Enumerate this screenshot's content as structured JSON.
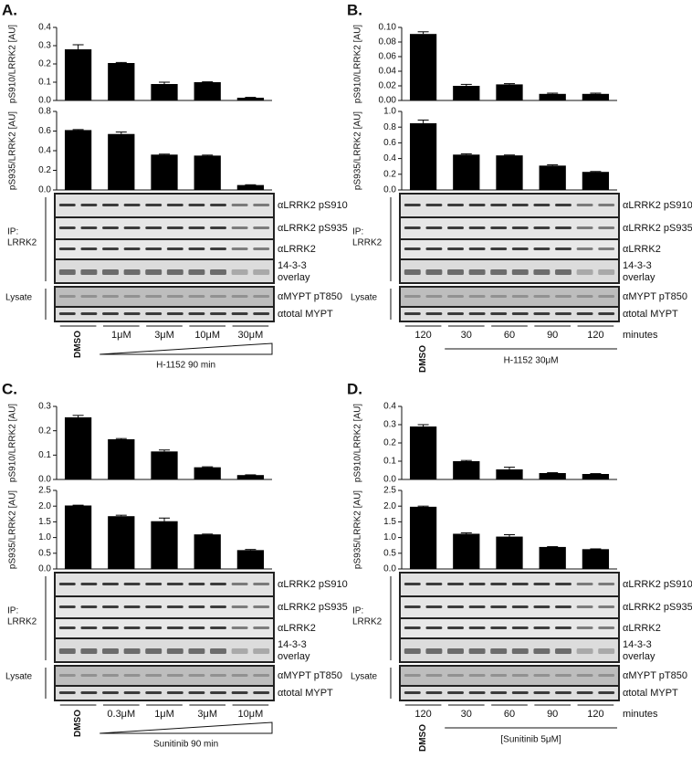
{
  "chart_data": [
    {
      "type": "bar",
      "ylabel": "pS910/LRRK2 [AU]",
      "values": [
        0.28,
        0.205,
        0.09,
        0.1,
        0.015
      ],
      "errors": [
        0.025,
        0.003,
        0.01,
        0.002,
        0.002
      ],
      "color": "#000000",
      "ylim": [
        0,
        0.4
      ],
      "yticks": [
        {
          "value": 0,
          "label": "0.0"
        },
        0.1,
        0.2,
        0.3,
        0.4
      ]
    },
    {
      "type": "bar",
      "ylabel": "pS935/LRRK2 [AU]",
      "values": [
        0.61,
        0.57,
        0.36,
        0.35,
        0.05
      ],
      "errors": [
        0.005,
        0.02,
        0.005,
        0.005,
        0.003
      ],
      "color": "#000000",
      "ylim": [
        0,
        0.8
      ],
      "yticks": [
        {
          "value": 0,
          "label": "0.0"
        },
        0.2,
        0.4,
        0.6,
        0.8
      ]
    },
    {
      "type": "bar",
      "ylabel": "pS910/LRRK2 [AU]",
      "values": [
        0.091,
        0.02,
        0.022,
        0.009,
        0.009
      ],
      "errors": [
        0.003,
        0.002,
        0.001,
        0.001,
        0.001
      ],
      "color": "#000000",
      "ylim": [
        0,
        0.1
      ],
      "yticks": [
        {
          "value": 0,
          "label": "0.00"
        },
        0.02,
        0.04,
        0.06,
        0.08,
        {
          "value": 0.1,
          "label": "0.10"
        }
      ]
    },
    {
      "type": "bar",
      "ylabel": "pS935/LRRK2 [AU]",
      "values": [
        0.85,
        0.45,
        0.44,
        0.31,
        0.23
      ],
      "errors": [
        0.04,
        0.01,
        0.005,
        0.01,
        0.005
      ],
      "color": "#000000",
      "ylim": [
        0,
        1
      ],
      "yticks": [
        {
          "value": 0,
          "label": "0.0"
        },
        0.2,
        0.4,
        0.6,
        0.8,
        {
          "value": 1,
          "label": "1.0"
        }
      ]
    },
    {
      "type": "bar",
      "ylabel": "pS910/LRRK2 [AU]",
      "values": [
        0.255,
        0.165,
        0.115,
        0.05,
        0.018
      ],
      "errors": [
        0.008,
        0.003,
        0.006,
        0.002,
        0.001
      ],
      "color": "#000000",
      "ylim": [
        0,
        0.3
      ],
      "yticks": [
        {
          "value": 0,
          "label": "0.0"
        },
        0.1,
        0.2,
        0.3
      ]
    },
    {
      "type": "bar",
      "ylabel": "pS935/LRRK2 [AU]",
      "values": [
        2.02,
        1.68,
        1.52,
        1.1,
        0.6
      ],
      "errors": [
        0.01,
        0.03,
        0.1,
        0.01,
        0.02
      ],
      "color": "#000000",
      "ylim": [
        0,
        2.5
      ],
      "yticks": [
        {
          "value": 0,
          "label": "0.0"
        },
        0.5,
        {
          "value": 1,
          "label": "1.0"
        },
        1.5,
        {
          "value": 2,
          "label": "2.0"
        },
        2.5
      ]
    },
    {
      "type": "bar",
      "ylabel": "pS910/LRRK2 [AU]",
      "values": [
        0.29,
        0.1,
        0.055,
        0.035,
        0.03
      ],
      "errors": [
        0.01,
        0.004,
        0.012,
        0.002,
        0.002
      ],
      "color": "#000000",
      "ylim": [
        0,
        0.4
      ],
      "yticks": [
        {
          "value": 0,
          "label": "0.0"
        },
        0.1,
        0.2,
        0.3,
        0.4
      ]
    },
    {
      "type": "bar",
      "ylabel": "pS935/LRRK2 [AU]",
      "values": [
        1.98,
        1.12,
        1.03,
        0.7,
        0.63
      ],
      "errors": [
        0.02,
        0.03,
        0.06,
        0.01,
        0.01
      ],
      "color": "#000000",
      "ylim": [
        0,
        2.5
      ],
      "yticks": [
        {
          "value": 0,
          "label": "0.0"
        },
        0.5,
        {
          "value": 1,
          "label": "1.0"
        },
        1.5,
        {
          "value": 2,
          "label": "2.0"
        },
        2.5
      ]
    }
  ],
  "panels": [
    {
      "letter": "A.",
      "ip_rows": [
        "αLRRK2 pS910",
        "αLRRK2 pS935",
        "αLRRK2"
      ],
      "overlay": [
        "14-3-3",
        "overlay"
      ],
      "lysate_rows": [
        "αMYPT pT850",
        "αtotal MYPT"
      ],
      "ip_label": [
        "IP:",
        "LRRK2"
      ],
      "lysate_label": "Lysate",
      "lanes": [
        "DMSO",
        "1μM",
        "3μM",
        "10μM",
        "30μM"
      ],
      "treatment": "H-1152 90 min"
    },
    {
      "letter": "B.",
      "ip_rows": [
        "αLRRK2 pS910",
        "αLRRK2 pS935",
        "αLRRK2"
      ],
      "overlay": [
        "14-3-3",
        "overlay"
      ],
      "lysate_rows": [
        "αMYPT pT850",
        "αtotal MYPT"
      ],
      "ip_label": [
        "IP:",
        "LRRK2"
      ],
      "lysate_label": "Lysate",
      "lanes": [
        "120",
        "30",
        "60",
        "90",
        "120"
      ],
      "lane_unit": "minutes",
      "control": "DMSO",
      "treatment": "H-1152 30μM"
    },
    {
      "letter": "C.",
      "ip_rows": [
        "αLRRK2 pS910",
        "αLRRK2 pS935",
        "αLRRK2"
      ],
      "overlay": [
        "14-3-3",
        "overlay"
      ],
      "lysate_rows": [
        "αMYPT pT850",
        "αtotal MYPT"
      ],
      "ip_label": [
        "IP:",
        "LRRK2"
      ],
      "lysate_label": "Lysate",
      "lanes": [
        "DMSO",
        "0.3μM",
        "1μM",
        "3μM",
        "10μM"
      ],
      "treatment": "Sunitinib 90 min"
    },
    {
      "letter": "D.",
      "ip_rows": [
        "αLRRK2 pS910",
        "αLRRK2 pS935",
        "αLRRK2"
      ],
      "overlay": [
        "14-3-3",
        "overlay"
      ],
      "lysate_rows": [
        "αMYPT pT850",
        "αtotal MYPT"
      ],
      "ip_label": [
        "IP:",
        "LRRK2"
      ],
      "lysate_label": "Lysate",
      "lanes": [
        "120",
        "30",
        "60",
        "90",
        "120"
      ],
      "lane_unit": "minutes",
      "control": "DMSO",
      "treatment": "[Sunitinib 5μM]"
    }
  ]
}
